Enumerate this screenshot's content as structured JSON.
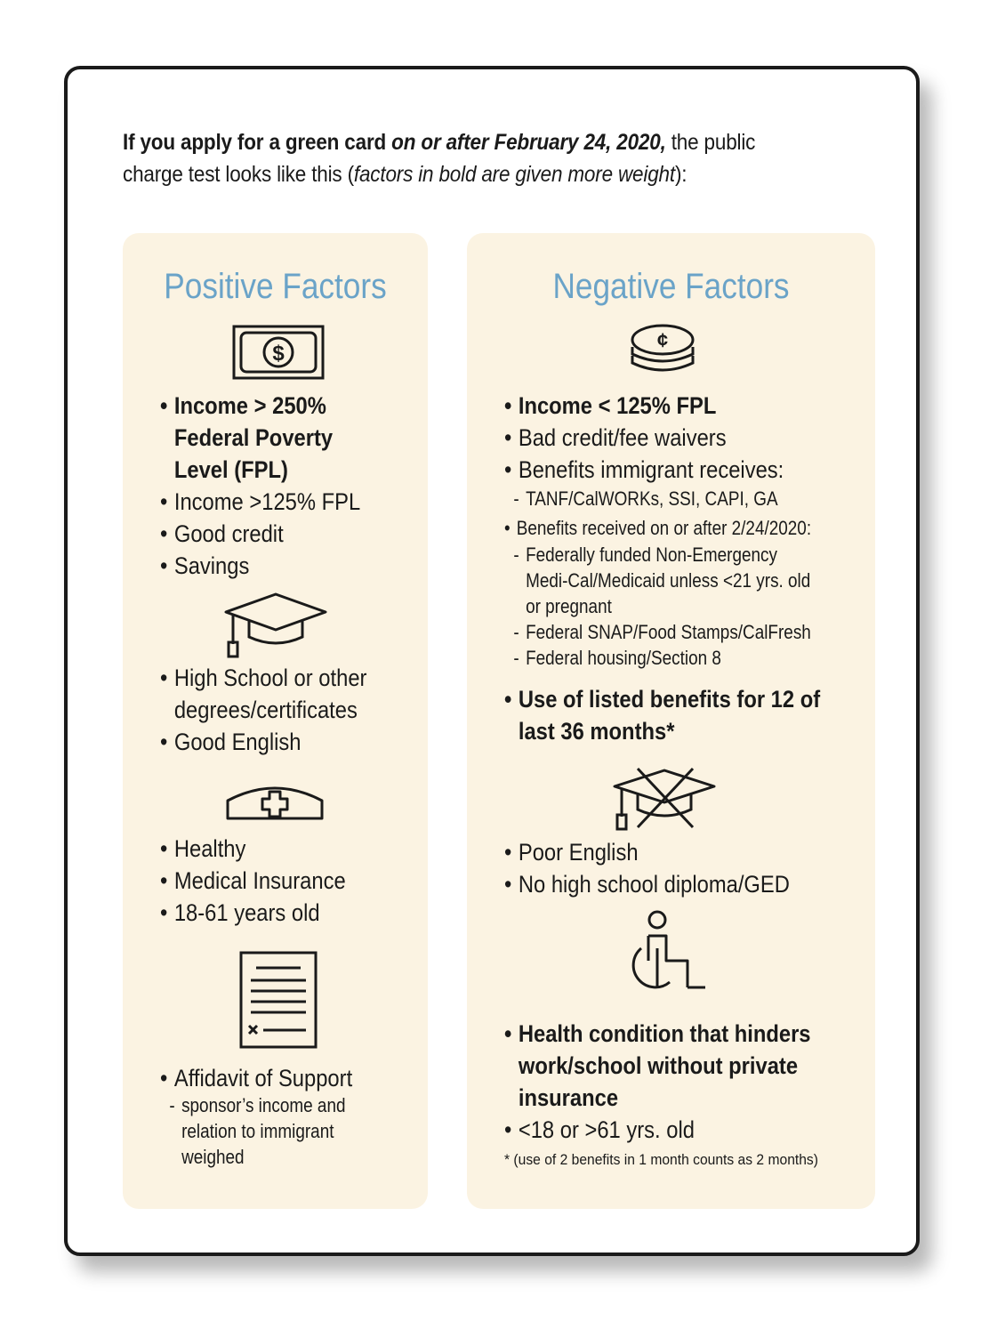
{
  "intro": {
    "part1": "If you apply for a green card ",
    "part2": "on or after February 24, 2020,",
    "part3": " the public charge test looks like this (",
    "part4": "factors in bold are given more weight",
    "part5": "):"
  },
  "positive": {
    "title": "Positive Factors",
    "group1": {
      "icon": "dollar-bill-icon",
      "items": [
        {
          "line1": "Income > 250%",
          "line2": "Federal Poverty",
          "line3": "Level (FPL)"
        },
        "Income >125% FPL",
        "Good credit",
        "Savings"
      ]
    },
    "group2": {
      "icon": "graduation-cap-icon",
      "items": [
        {
          "line1": "High School or other",
          "line2": "degrees/certificates"
        },
        "Good English"
      ]
    },
    "group3": {
      "icon": "nurse-cap-icon",
      "items": [
        "Healthy",
        "Medical Insurance",
        "18-61 years old"
      ]
    },
    "group4": {
      "icon": "document-icon",
      "item": "Affidavit of Support",
      "sub": {
        "line1": "sponsor’s income and",
        "line2": "relation to immigrant",
        "line3": "weighed"
      }
    }
  },
  "negative": {
    "title": "Negative Factors",
    "group1": {
      "icon": "coins-icon",
      "coin_symbol": "¢",
      "items": [
        "Income < 125% FPL",
        "Bad credit/fee waivers",
        "Benefits immigrant receives:"
      ],
      "sub1": "TANF/CalWORKs, SSI, CAPI, GA",
      "benefits_after": "Benefits received on or after 2/24/2020:",
      "sub2": {
        "line1": "Federally funded Non-Emergency",
        "line2": "Medi-Cal/Medicaid unless <21 yrs. old",
        "line3": "or pregnant"
      },
      "sub3": "Federal SNAP/Food Stamps/CalFresh",
      "sub4": "Federal housing/Section 8",
      "use_listed": {
        "line1": "Use of listed benefits for 12 of",
        "line2": "last 36 months*"
      }
    },
    "group2": {
      "icon": "crossed-graduation-cap-icon",
      "items": [
        "Poor English",
        "No high school diploma/GED"
      ]
    },
    "group3": {
      "icon": "wheelchair-icon",
      "health": {
        "line1": "Health condition that hinders",
        "line2": "work/school without private",
        "line3": "insurance"
      },
      "age": "<18 or >61 yrs. old"
    },
    "footnote": "* (use of 2 benefits in 1 month counts as 2 months)"
  }
}
